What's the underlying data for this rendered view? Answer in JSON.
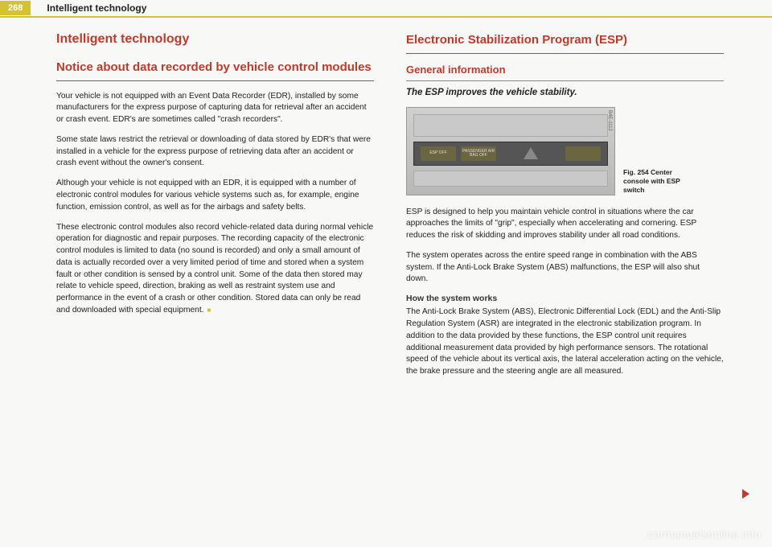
{
  "header": {
    "page_number": "268",
    "running_title": "Intelligent technology"
  },
  "left": {
    "main_heading": "Intelligent technology",
    "section_heading": "Notice about data recorded by vehicle control modules",
    "p1": "Your vehicle is not equipped with an Event Data Recorder (EDR), installed by some manufacturers for the express purpose of capturing data for retrieval after an accident or crash event. EDR's are sometimes called \"crash recorders\".",
    "p2": "Some state laws restrict the retrieval or downloading of data stored by EDR's that were installed in a vehicle for the express purpose of retrieving data after an accident or crash event without the owner's consent.",
    "p3": "Although your vehicle is not equipped with an EDR, it is equipped with a number of electronic control modules for various vehicle systems such as, for example, engine function, emission control, as well as for the airbags and safety belts.",
    "p4": "These electronic control modules also record vehicle-related data during normal vehicle operation for diagnostic and repair purposes. The recording capacity of the electronic control modules is limited to data (no sound is recorded) and only a small amount of data is actually recorded over a very limited period of time and stored when a system fault or other condition is sensed by a control unit. Some of the data then stored may relate to vehicle speed, direction, braking as well as restraint system use and performance in the event of a crash or other condition. Stored data can only be read and downloaded with special equipment."
  },
  "right": {
    "section_heading": "Electronic Stabilization Program (ESP)",
    "sub_heading": "General information",
    "tagline": "The ESP improves the vehicle stability.",
    "figure": {
      "btn1": "ESP OFF",
      "btn2": "PASSENGER AIR BAG OFF",
      "tag": "B4E-1112",
      "caption": "Fig. 254  Center console with ESP switch"
    },
    "p1": "ESP is designed to help you maintain vehicle control in situations where the car approaches the limits of \"grip\", especially when accelerating and cornering. ESP reduces the risk of skidding and improves stability under all road conditions.",
    "p2": "The system operates across the entire speed range in combination with the ABS system. If the Anti-Lock Brake System (ABS) malfunctions, the ESP will also shut down.",
    "how_heading": "How the system works",
    "p3": "The Anti-Lock Brake System (ABS), Electronic Differential Lock (EDL) and the Anti-Slip Regulation System (ASR) are integrated in the electronic stabilization program. In addition to the data provided by these functions, the ESP control unit requires additional measurement data provided by high performance sensors. The rotational speed of the vehicle about its vertical axis, the lateral acceleration acting on the vehicle, the brake pressure and the steering angle are all measured."
  },
  "watermark": "carmanualsonline.info"
}
